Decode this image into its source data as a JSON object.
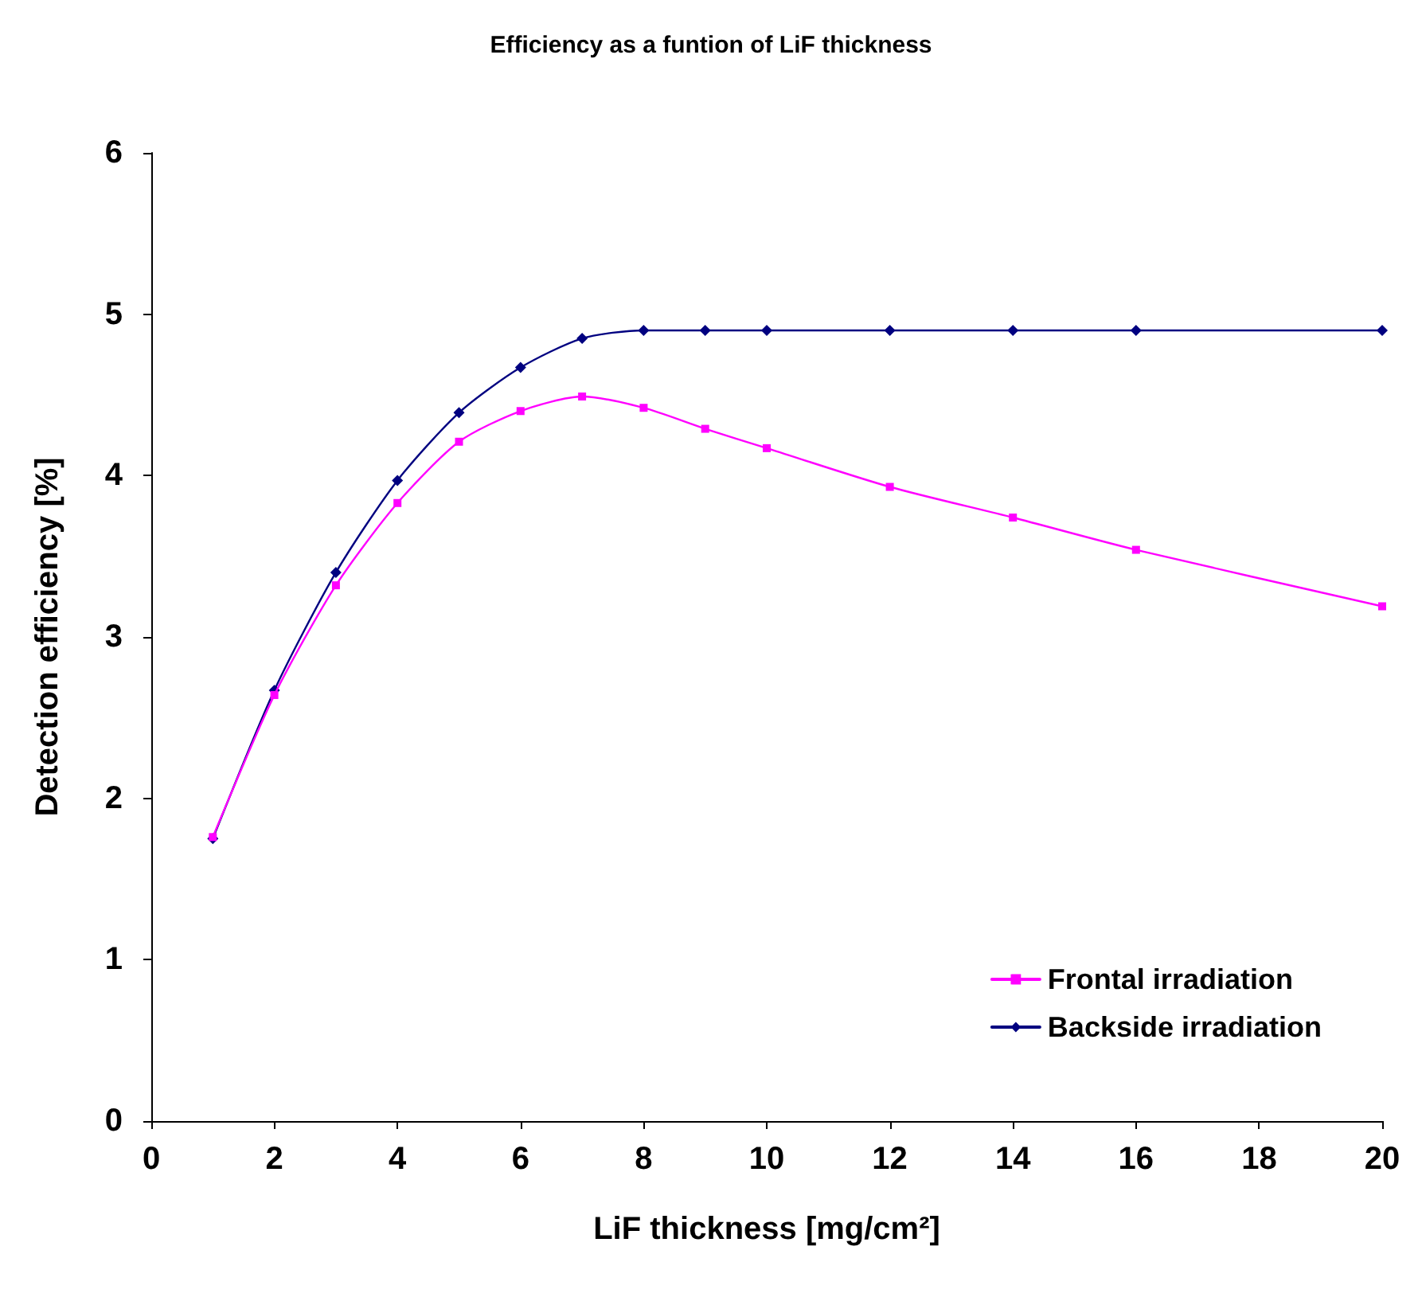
{
  "chart_data": {
    "type": "line",
    "title": "Efficiency as a funtion of LiF thickness",
    "xlabel": "LiF thickness [mg/cm²]",
    "ylabel": "Detection efficiency [%]",
    "x": [
      1,
      2,
      3,
      4,
      5,
      6,
      7,
      8,
      9,
      10,
      12,
      14,
      16,
      20
    ],
    "series": [
      {
        "name": "Frontal irradiation",
        "color": "#ff00ff",
        "marker": "square",
        "values": [
          1.76,
          2.64,
          3.32,
          3.83,
          4.21,
          4.4,
          4.49,
          4.42,
          4.29,
          4.17,
          3.93,
          3.74,
          3.54,
          3.19
        ]
      },
      {
        "name": "Backside irradiation",
        "color": "#000080",
        "marker": "diamond",
        "values": [
          1.75,
          2.67,
          3.4,
          3.97,
          4.39,
          4.67,
          4.85,
          4.9,
          4.9,
          4.9,
          4.9,
          4.9,
          4.9,
          4.9
        ]
      }
    ],
    "xlim": [
      0,
      20
    ],
    "xticks": [
      0,
      2,
      4,
      6,
      8,
      10,
      12,
      14,
      16,
      18,
      20
    ],
    "ylim": [
      0,
      6
    ],
    "yticks": [
      0,
      1,
      2,
      3,
      4,
      5,
      6
    ],
    "grid": false,
    "legend": "bottom right",
    "line_style": "solid"
  }
}
